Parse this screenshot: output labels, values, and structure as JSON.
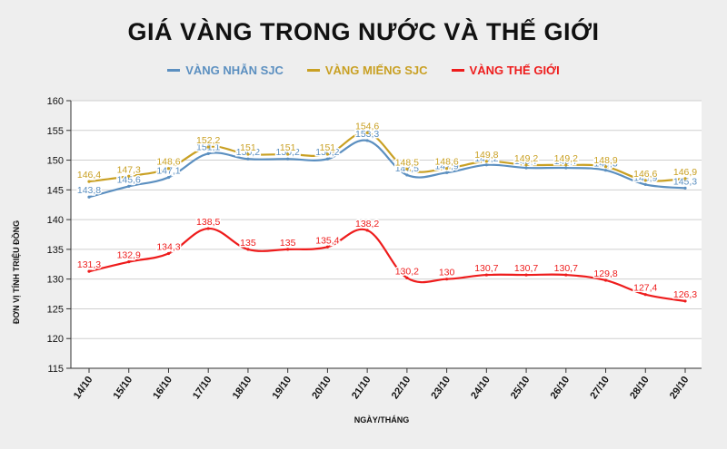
{
  "colors": {
    "nhan": "#5b8fc0",
    "mieng": "#c9a023",
    "thegioi": "#ee1c1c"
  },
  "chart_data": {
    "type": "line",
    "title": "GIÁ VÀNG TRONG NƯỚC VÀ THẾ GIỚI",
    "xlabel": "NGÀY/THÁNG",
    "ylabel": "ĐƠN VỊ TÍNH TRIỆU ĐỒNG",
    "ylim": [
      115,
      160
    ],
    "yticks": [
      "115",
      "120",
      "125",
      "130",
      "135",
      "140",
      "145",
      "150",
      "155",
      "160"
    ],
    "grid": true,
    "legend_position": "top",
    "categories": [
      "14/10",
      "15/10",
      "16/10",
      "17/10",
      "18/10",
      "19/10",
      "20/10",
      "21/10",
      "22/10",
      "23/10",
      "24/10",
      "25/10",
      "26/10",
      "27/10",
      "28/10",
      "29/10"
    ],
    "series": [
      {
        "name": "VÀNG NHẪN SJC",
        "color": "#5b8fc0",
        "values": [
          143.8,
          145.6,
          147.1,
          151.1,
          150.2,
          150.2,
          150.2,
          153.3,
          147.5,
          147.9,
          149.2,
          148.7,
          148.7,
          148.3,
          145.9,
          145.3
        ],
        "labels": [
          "143,8",
          "145,6",
          "147,1",
          "151,1",
          "150,2",
          "150,2",
          "150,2",
          "153,3",
          "147,5",
          "147,9",
          "149,2",
          "148,7",
          "148,7",
          "148,3",
          "145,9",
          "145,3"
        ]
      },
      {
        "name": "VÀNG MIẾNG SJC",
        "color": "#c9a023",
        "values": [
          146.4,
          147.3,
          148.6,
          152.2,
          151,
          151,
          151,
          154.6,
          148.5,
          148.6,
          149.8,
          149.2,
          149.2,
          148.9,
          146.6,
          146.9
        ],
        "labels": [
          "146,4",
          "147,3",
          "148,6",
          "152,2",
          "151",
          "151",
          "151",
          "154,6",
          "148,5",
          "148,6",
          "149,8",
          "149,2",
          "149,2",
          "148,9",
          "146,6",
          "146,9"
        ]
      },
      {
        "name": "VÀNG THẾ GIỚI",
        "color": "#ee1c1c",
        "values": [
          131.3,
          132.9,
          134.3,
          138.5,
          135,
          135,
          135.4,
          138.2,
          130.2,
          130,
          130.7,
          130.7,
          130.7,
          129.8,
          127.4,
          126.3
        ],
        "labels": [
          "131,3",
          "132,9",
          "134,3",
          "138,5",
          "135",
          "135",
          "135,4",
          "138,2",
          "130,2",
          "130",
          "130,7",
          "130,7",
          "130,7",
          "129,8",
          "127,4",
          "126,3"
        ]
      }
    ]
  }
}
